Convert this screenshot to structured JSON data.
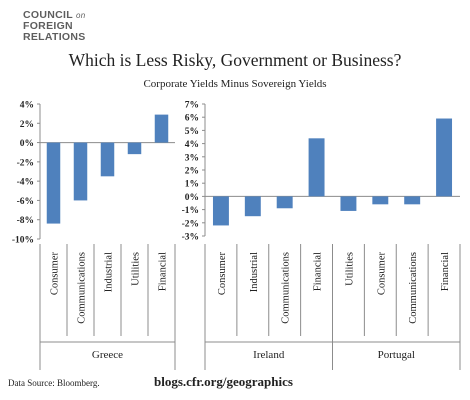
{
  "header": {
    "logo_line1": "COUNCIL",
    "logo_on": "on",
    "logo_line2": "FOREIGN",
    "logo_line3": "RELATIONS"
  },
  "footer": {
    "source": "Data Source: Bloomberg.",
    "url": "blogs.cfr.org/geographics"
  },
  "colors": {
    "bar": "#4f81bd",
    "axis": "#8c8c8c",
    "text": "#222222"
  },
  "chart_data": [
    {
      "type": "bar",
      "title": "Which is Less Risky, Government or Business?",
      "subtitle": "Corporate Yields Minus Sovereign Yields",
      "group": "Greece",
      "categories": [
        "Consumer",
        "Communications",
        "Industrial",
        "Utilities",
        "Financial"
      ],
      "values": [
        -8.4,
        -6.0,
        -3.5,
        -1.2,
        2.9
      ],
      "ylim": [
        -10,
        4
      ],
      "yticks": [
        "4%",
        "2%",
        "0%",
        "-2%",
        "-4%",
        "-6%",
        "-8%",
        "-10%"
      ],
      "grid": false
    },
    {
      "type": "bar",
      "groups": [
        {
          "name": "Ireland",
          "categories": [
            "Consumer",
            "Industrial",
            "Communications",
            "Financial"
          ],
          "values": [
            -2.2,
            -1.5,
            -0.9,
            4.4
          ]
        },
        {
          "name": "Portugal",
          "categories": [
            "Utilities",
            "Consumer",
            "Communications",
            "Financial"
          ],
          "values": [
            -1.1,
            -0.6,
            -0.6,
            5.9
          ]
        }
      ],
      "ylim": [
        -3,
        7
      ],
      "yticks": [
        "7%",
        "6%",
        "5%",
        "4%",
        "3%",
        "2%",
        "1%",
        "0%",
        "-1%",
        "-2%",
        "-3%"
      ],
      "grid": false
    }
  ]
}
